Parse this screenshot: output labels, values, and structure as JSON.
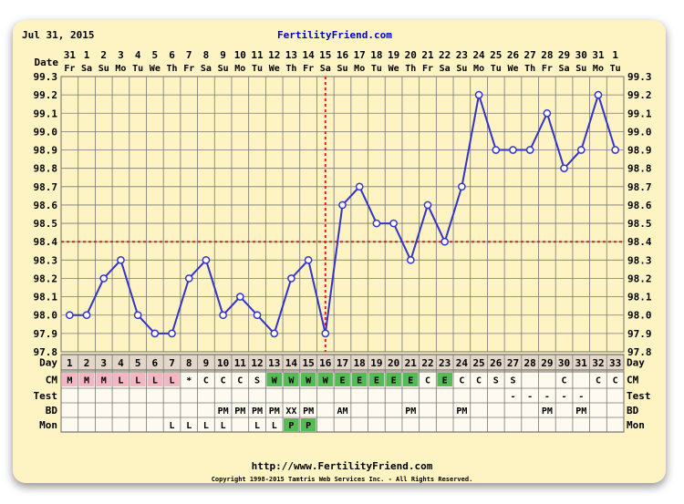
{
  "header": {
    "date_label": "Jul 31, 2015",
    "site_title": "FertilityFriend.com"
  },
  "footer": {
    "url": "http://www.FertilityFriend.com",
    "copyright": "Copyright 1998-2015 Tamtris Web Services Inc. - All Rights Reserved."
  },
  "colors": {
    "background": "#fdf3c3",
    "line": "#3333cc",
    "coverline": "#dd2222",
    "ovulation_line": "#dd2222",
    "menstrual_flow": "#f4b6c2",
    "eggwhite": "#55bb55",
    "positive_test": "#55bb55",
    "shaded_rows": "#e2d7c8"
  },
  "chart_data": {
    "type": "line",
    "title": "",
    "y_axis_labels": [
      "99.3",
      "99.2",
      "99.1",
      "99.0",
      "98.9",
      "98.8",
      "98.7",
      "98.6",
      "98.5",
      "98.4",
      "98.3",
      "98.2",
      "98.1",
      "98.0",
      "97.9",
      "97.8"
    ],
    "ylim": [
      97.8,
      99.3
    ],
    "grid": true,
    "dates": [
      "31",
      "1",
      "2",
      "3",
      "4",
      "5",
      "6",
      "7",
      "8",
      "9",
      "10",
      "11",
      "12",
      "13",
      "14",
      "15",
      "16",
      "17",
      "18",
      "19",
      "20",
      "21",
      "22",
      "23",
      "24",
      "25",
      "26",
      "27",
      "28",
      "29",
      "30",
      "31",
      "1"
    ],
    "weekdays": [
      "Fr",
      "Sa",
      "Su",
      "Mo",
      "Tu",
      "We",
      "Th",
      "Fr",
      "Sa",
      "Su",
      "Mo",
      "Tu",
      "We",
      "Th",
      "Fr",
      "Sa",
      "Su",
      "Mo",
      "Tu",
      "We",
      "Th",
      "Fr",
      "Sa",
      "Su",
      "Mo",
      "Tu",
      "We",
      "Th",
      "Fr",
      "Sa",
      "Su",
      "Mo",
      "Tu"
    ],
    "cycle_days": [
      "1",
      "2",
      "3",
      "4",
      "5",
      "6",
      "7",
      "8",
      "9",
      "10",
      "11",
      "12",
      "13",
      "14",
      "15",
      "16",
      "17",
      "18",
      "19",
      "20",
      "21",
      "22",
      "23",
      "24",
      "25",
      "26",
      "27",
      "28",
      "29",
      "30",
      "31",
      "32",
      "33"
    ],
    "series": [
      {
        "values": [
          98.0,
          98.0,
          98.2,
          98.3,
          98.0,
          97.9,
          97.9,
          98.2,
          98.3,
          98.0,
          98.1,
          98.0,
          97.9,
          98.2,
          98.3,
          97.9,
          98.6,
          98.7,
          98.5,
          98.5,
          98.3,
          98.6,
          98.4,
          98.7,
          99.2,
          98.9,
          98.9,
          98.9,
          99.1,
          98.8,
          98.9,
          99.2,
          98.9
        ]
      }
    ],
    "coverline": 98.4,
    "ovulation_cycle_day": 16,
    "row_labels": {
      "date": "Date",
      "day": "Day",
      "cm": "CM",
      "test": "Test",
      "bd": "BD",
      "mon": "Mon"
    },
    "rows": {
      "cm": [
        "M",
        "M",
        "M",
        "L",
        "L",
        "L",
        "L",
        "*",
        "C",
        "C",
        "C",
        "S",
        "W",
        "W",
        "W",
        "W",
        "E",
        "E",
        "E",
        "E",
        "E",
        "C",
        "E",
        "C",
        "C",
        "S",
        "S",
        "",
        "",
        "C",
        "",
        "C",
        "C"
      ],
      "test": [
        "",
        "",
        "",
        "",
        "",
        "",
        "",
        "",
        "",
        "",
        "",
        "",
        "",
        "",
        "",
        "",
        "",
        "",
        "",
        "",
        "",
        "",
        "",
        "",
        "",
        "",
        "-",
        "-",
        "-",
        "-",
        "-",
        "",
        ""
      ],
      "bd": [
        "",
        "",
        "",
        "",
        "",
        "",
        "",
        "",
        "",
        "PM",
        "PM",
        "PM",
        "PM",
        "XX",
        "PM",
        "",
        "AM",
        "",
        "",
        "",
        "PM",
        "",
        "",
        "PM",
        "",
        "",
        "",
        "",
        "PM",
        "",
        "PM",
        "",
        ""
      ],
      "mon": [
        "",
        "",
        "",
        "",
        "",
        "",
        "L",
        "L",
        "L",
        "L",
        "",
        "L",
        "L",
        "P",
        "P",
        "",
        "",
        "",
        "",
        "",
        "",
        "",
        "",
        "",
        "",
        "",
        "",
        "",
        "",
        "",
        "",
        "",
        ""
      ]
    }
  }
}
